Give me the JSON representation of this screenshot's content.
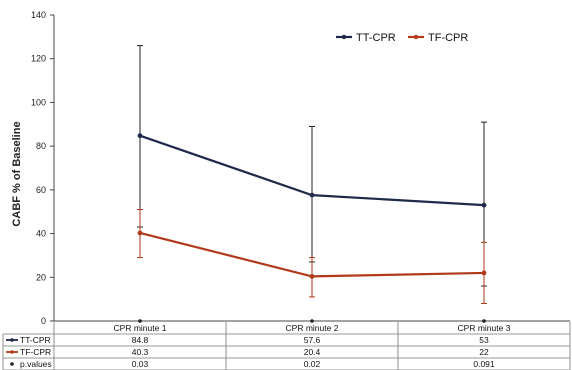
{
  "chart_data": {
    "type": "line",
    "ylabel": "CABF  % of Baseline",
    "ylim": [
      0,
      140
    ],
    "yticks": [
      0,
      20,
      40,
      60,
      80,
      100,
      120,
      140
    ],
    "categories": [
      "CPR minute 1",
      "CPR minute 2",
      "CPR minute 3"
    ],
    "series": [
      {
        "name": "TT-CPR",
        "color": "#1f2a4a",
        "values": [
          84.8,
          57.6,
          53
        ],
        "error_low": [
          43,
          27,
          16
        ],
        "error_high": [
          126,
          89,
          91
        ],
        "labels": [
          "84.8",
          "57.6",
          "53"
        ]
      },
      {
        "name": "TF-CPR",
        "color": "#b03a1a",
        "values": [
          40.3,
          20.4,
          22
        ],
        "error_low": [
          29,
          11,
          8
        ],
        "error_high": [
          51,
          29,
          36
        ],
        "labels": [
          "40.3",
          "20.4",
          "22"
        ]
      }
    ],
    "pvalues": {
      "name": "p.values",
      "values": [
        "0.03",
        "0.02",
        "0.091"
      ]
    },
    "grid": false,
    "legend": "top-right"
  }
}
